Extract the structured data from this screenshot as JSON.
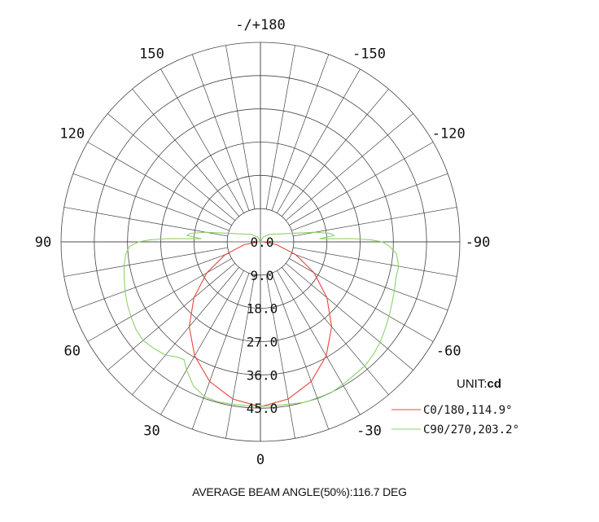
{
  "chart_data": {
    "type": "polar",
    "unit_label": "UNIT:",
    "unit_value": "cd",
    "angle_labels": [
      {
        "deg": 180,
        "text": "-/+180"
      },
      {
        "deg": 150,
        "text": "150"
      },
      {
        "deg": -150,
        "text": "-150"
      },
      {
        "deg": 120,
        "text": "120"
      },
      {
        "deg": -120,
        "text": "-120"
      },
      {
        "deg": 90,
        "text": "90"
      },
      {
        "deg": -90,
        "text": "-90"
      },
      {
        "deg": 60,
        "text": "60"
      },
      {
        "deg": -60,
        "text": "-60"
      },
      {
        "deg": 30,
        "text": "30"
      },
      {
        "deg": -30,
        "text": "-30"
      },
      {
        "deg": 0,
        "text": "0"
      }
    ],
    "rings": [
      {
        "value": 0,
        "text": "0.0"
      },
      {
        "value": 9,
        "text": "9.0"
      },
      {
        "value": 18,
        "text": "18.0"
      },
      {
        "value": 27,
        "text": "27.0"
      },
      {
        "value": 36,
        "text": "36.0"
      },
      {
        "value": 45,
        "text": "45.0"
      }
    ],
    "r_max": 54,
    "spoke_step_deg": 10,
    "series": [
      {
        "name": "C0/180,114.9°",
        "color": "#e8453c",
        "points": [
          [
            -90,
            0.6
          ],
          [
            -80,
            4.5
          ],
          [
            -70,
            10.2
          ],
          [
            -60,
            16.8
          ],
          [
            -50,
            23.5
          ],
          [
            -40,
            30
          ],
          [
            -30,
            35.6
          ],
          [
            -20,
            40.2
          ],
          [
            -10,
            43.2
          ],
          [
            0,
            44.6
          ],
          [
            10,
            43.2
          ],
          [
            20,
            40.2
          ],
          [
            30,
            35.6
          ],
          [
            40,
            30
          ],
          [
            50,
            23.5
          ],
          [
            60,
            16.8
          ],
          [
            70,
            10.2
          ],
          [
            80,
            4.5
          ],
          [
            90,
            0.6
          ]
        ]
      },
      {
        "name": "C90/270,203.2°",
        "color": "#8fd16a",
        "points": [
          [
            -180,
            0
          ],
          [
            -150,
            1.5
          ],
          [
            -130,
            3.2
          ],
          [
            -115,
            5
          ],
          [
            -105,
            9
          ],
          [
            -100,
            15
          ],
          [
            -97,
            19
          ],
          [
            -95,
            20
          ],
          [
            -93,
            16
          ],
          [
            -92,
            25
          ],
          [
            -91,
            30
          ],
          [
            -90,
            33
          ],
          [
            -88,
            35
          ],
          [
            -85,
            37
          ],
          [
            -80,
            38
          ],
          [
            -75,
            38
          ],
          [
            -70,
            38.6
          ],
          [
            -65,
            39.3
          ],
          [
            -60,
            40.2
          ],
          [
            -55,
            41.2
          ],
          [
            -50,
            42.3
          ],
          [
            -45,
            43.2
          ],
          [
            -40,
            43.9
          ],
          [
            -35,
            44.1
          ],
          [
            -30,
            44.6
          ],
          [
            -25,
            45.1
          ],
          [
            -20,
            45.2
          ],
          [
            -15,
            45
          ],
          [
            -10,
            44.6
          ],
          [
            -5,
            44.5
          ],
          [
            0,
            44.5
          ],
          [
            5,
            44.5
          ],
          [
            10,
            44.6
          ],
          [
            15,
            44.8
          ],
          [
            20,
            44.5
          ],
          [
            25,
            43
          ],
          [
            30,
            40
          ],
          [
            33,
            38
          ],
          [
            36,
            38.5
          ],
          [
            40,
            40
          ],
          [
            45,
            40.8
          ],
          [
            50,
            41.5
          ],
          [
            55,
            41.2
          ],
          [
            60,
            40.5
          ],
          [
            65,
            39.8
          ],
          [
            70,
            39
          ],
          [
            75,
            38.2
          ],
          [
            80,
            37.5
          ],
          [
            85,
            36.6
          ],
          [
            88,
            35.5
          ],
          [
            90,
            33
          ],
          [
            91,
            30
          ],
          [
            92,
            25
          ],
          [
            93,
            16
          ],
          [
            95,
            20
          ],
          [
            97,
            19
          ],
          [
            100,
            15
          ],
          [
            105,
            9
          ],
          [
            115,
            5
          ],
          [
            130,
            3.2
          ],
          [
            150,
            1.5
          ],
          [
            180,
            0
          ]
        ]
      }
    ]
  },
  "footer_text": "AVERAGE BEAM ANGLE(50%):116.7 DEG"
}
